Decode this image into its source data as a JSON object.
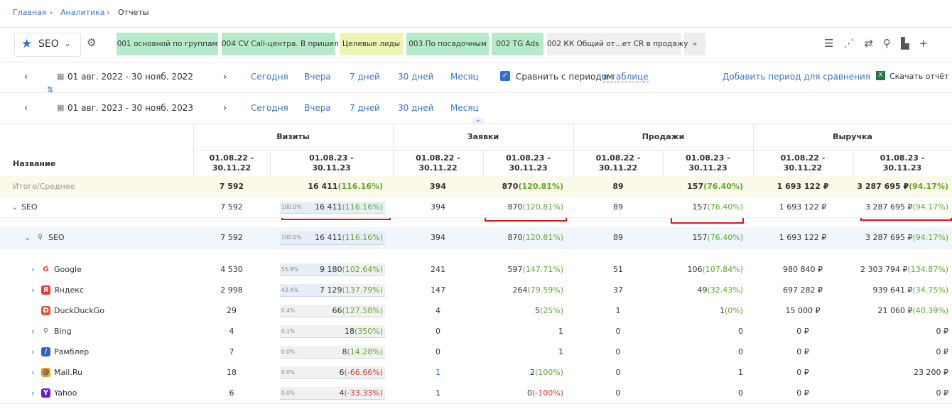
{
  "breadcrumb": [
    "Главная",
    "Аналитика",
    "Отчеты"
  ],
  "toolbar": {
    "segment": "SEO",
    "tabs": [
      "001 основной по группам",
      "004 CV Call-центра. В пришел",
      "Целевые лиды",
      "003 По посадочным",
      "002 TG Ads",
      "002 КК Общий от...ет CR в продажу"
    ]
  },
  "periods": [
    {
      "range": "01 авг. 2022 - 30 нояб. 2022",
      "quick": [
        "Сегодня",
        "Вчера",
        "7 дней",
        "30 дней",
        "Месяц"
      ]
    },
    {
      "range": "01 авг. 2023 - 30 нояб. 2023",
      "quick": [
        "Сегодня",
        "Вчера",
        "7 дней",
        "30 дней",
        "Месяц"
      ]
    }
  ],
  "compare": {
    "label": "Сравнить с периодом",
    "link": "в таблице",
    "add": "Добавить период для сравнения",
    "download": "Скачать отчёт"
  },
  "table": {
    "name_header": "Название",
    "groups": [
      "Визиты",
      "Заявки",
      "Продажи",
      "Выручка"
    ],
    "period_headers": [
      "01.08.22 - 30.11.22",
      "01.08.23 - 30.11.23"
    ],
    "rows": [
      {
        "name": "Итого/Среднее",
        "cells": [
          "7 592",
          "16 411",
          "(116.16%)",
          "394",
          "870",
          "(120.81%)",
          "89",
          "157",
          "(76.40%)",
          "1 693 122 ₽",
          "3 287 695 ₽",
          "(94.17%)"
        ]
      },
      {
        "name": "SEO",
        "share": {
          "value": 100.0,
          "label": "100.0%"
        },
        "cells": [
          "7 592",
          "16 411",
          "(116.16%)",
          "394",
          "870",
          "(120.81%)",
          "89",
          "157",
          "(76.40%)",
          "1 693 122 ₽",
          "3 287 695 ₽",
          "(94.17%)"
        ]
      },
      {
        "name": "SEO",
        "share": {
          "value": 100.0,
          "label": "100.0%"
        },
        "cells": [
          "7 592",
          "16 411",
          "(116.16%)",
          "394",
          "870",
          "(120.81%)",
          "89",
          "157",
          "(76.40%)",
          "1 693 122 ₽",
          "3 287 695 ₽",
          "(94.17%)"
        ]
      },
      {
        "name": "Google",
        "share": {
          "value": 55.9,
          "label": "55.9%"
        },
        "cells": [
          "4 530",
          "9 180",
          "(102.64%)",
          "241",
          "597",
          "(147.71%)",
          "51",
          "106",
          "(107.84%)",
          "980 840 ₽",
          "2 303 794 ₽",
          "(134.87%)"
        ]
      },
      {
        "name": "Яндекс",
        "share": {
          "value": 43.4,
          "label": "43.4%"
        },
        "cells": [
          "2 998",
          "7 129",
          "(137.79%)",
          "147",
          "264",
          "(79.59%)",
          "37",
          "49",
          "(32.43%)",
          "697 282 ₽",
          "939 641 ₽",
          "(34.75%)"
        ]
      },
      {
        "name": "DuckDuckGo",
        "share": {
          "value": 0.4,
          "label": "0.4%"
        },
        "cells": [
          "29",
          "66",
          "(127.58%)",
          "4",
          "5",
          "(25%)",
          "1",
          "1",
          "(0%)",
          "15 000 ₽",
          "21 060 ₽",
          "(40.39%)"
        ]
      },
      {
        "name": "Bing",
        "share": {
          "value": 0.1,
          "label": "0.1%"
        },
        "cells": [
          "4",
          "18",
          "(350%)",
          "0",
          "1",
          null,
          "0",
          "0",
          null,
          "0 ₽",
          "0 ₽",
          null
        ]
      },
      {
        "name": "Рамблер",
        "share": {
          "value": 0.0,
          "label": "0.0%"
        },
        "cells": [
          "7",
          "8",
          "(14.28%)",
          "0",
          "1",
          null,
          "0",
          "0",
          null,
          "0 ₽",
          "0 ₽",
          null
        ]
      },
      {
        "name": "Mail.Ru",
        "share": {
          "value": 0.0,
          "label": "0.0%"
        },
        "cells": [
          "18",
          "6",
          "(-66.66%)",
          "1",
          "2",
          "(100%)",
          "0",
          "1",
          null,
          "0 ₽",
          "23 200 ₽",
          null
        ]
      },
      {
        "name": "Yahoo",
        "share": {
          "value": 0.0,
          "label": "0.0%"
        },
        "cells": [
          "6",
          "4",
          "(-33.33%)",
          "1",
          "0",
          "(-100%)",
          "0",
          "0",
          null,
          "0 ₽",
          "0 ₽",
          null
        ]
      }
    ]
  }
}
